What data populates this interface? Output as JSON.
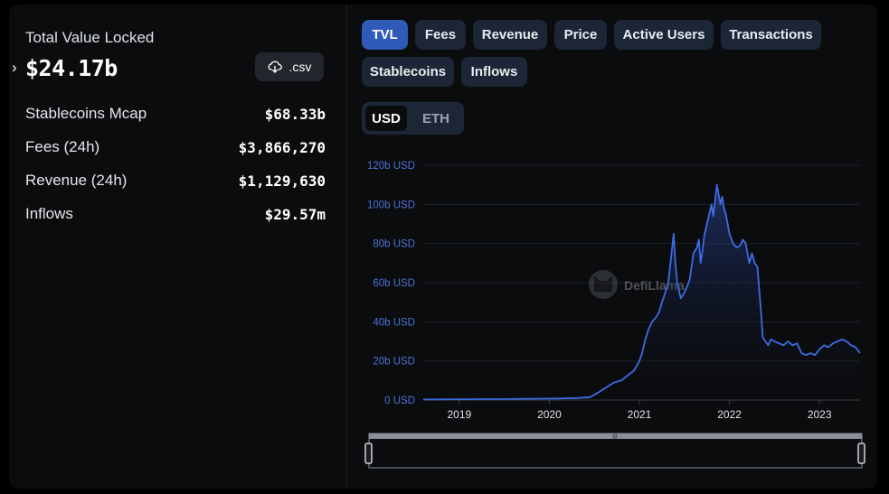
{
  "summary": {
    "tvl_label": "Total Value Locked",
    "tvl_value": "$24.17b",
    "csv_label": ".csv",
    "stats": [
      {
        "label": "Stablecoins Mcap",
        "value": "$68.33b"
      },
      {
        "label": "Fees (24h)",
        "value": "$3,866,270"
      },
      {
        "label": "Revenue (24h)",
        "value": "$1,129,630"
      },
      {
        "label": "Inflows",
        "value": "$29.57m"
      }
    ]
  },
  "tabs": [
    {
      "label": "TVL",
      "active": true
    },
    {
      "label": "Fees",
      "active": false
    },
    {
      "label": "Revenue",
      "active": false
    },
    {
      "label": "Price",
      "active": false
    },
    {
      "label": "Active Users",
      "active": false
    },
    {
      "label": "Transactions",
      "active": false
    },
    {
      "label": "Stablecoins",
      "active": false
    },
    {
      "label": "Inflows",
      "active": false
    }
  ],
  "unit_toggle": {
    "options": [
      "USD",
      "ETH"
    ],
    "selected": "USD"
  },
  "watermark": "DefiLlama",
  "colors": {
    "accent": "#2f5ab8",
    "line": "#3d6be3",
    "tab_bg": "#1c2637",
    "panel_bg": "#0b0c0e"
  },
  "chart_data": {
    "type": "area",
    "title": "",
    "xlabel": "",
    "ylabel": "",
    "ylim": [
      0,
      120
    ],
    "xlim": [
      2018.6,
      2023.45
    ],
    "y_ticks": [
      "0 USD",
      "20b USD",
      "40b USD",
      "60b USD",
      "80b USD",
      "100b USD",
      "120b USD"
    ],
    "x_ticks": [
      "2019",
      "2020",
      "2021",
      "2022",
      "2023"
    ],
    "grid": true,
    "series": [
      {
        "x": [
          2018.6,
          2019.0,
          2019.5,
          2019.9,
          2020.1,
          2020.3,
          2020.45,
          2020.55,
          2020.65,
          2020.72,
          2020.8,
          2020.88,
          2020.94,
          2021.0,
          2021.03,
          2021.06,
          2021.1,
          2021.14,
          2021.18,
          2021.22,
          2021.25,
          2021.28,
          2021.32,
          2021.35,
          2021.38,
          2021.4,
          2021.42,
          2021.44,
          2021.46,
          2021.5,
          2021.53,
          2021.56,
          2021.6,
          2021.64,
          2021.66,
          2021.68,
          2021.7,
          2021.72,
          2021.75,
          2021.78,
          2021.8,
          2021.82,
          2021.84,
          2021.86,
          2021.88,
          2021.9,
          2021.92,
          2021.94,
          2021.96,
          2022.0,
          2022.04,
          2022.08,
          2022.12,
          2022.15,
          2022.18,
          2022.22,
          2022.25,
          2022.28,
          2022.31,
          2022.35,
          2022.37,
          2022.4,
          2022.43,
          2022.46,
          2022.5,
          2022.55,
          2022.6,
          2022.65,
          2022.7,
          2022.75,
          2022.8,
          2022.85,
          2022.9,
          2022.95,
          2023.0,
          2023.05,
          2023.1,
          2023.15,
          2023.2,
          2023.25,
          2023.3,
          2023.35,
          2023.4,
          2023.45
        ],
        "y": [
          0.3,
          0.4,
          0.5,
          0.7,
          0.8,
          1.0,
          1.5,
          4,
          7,
          9,
          10,
          13,
          15,
          20,
          24,
          30,
          36,
          40,
          42,
          45,
          50,
          54,
          60,
          72,
          85,
          70,
          60,
          56,
          52,
          55,
          58,
          62,
          75,
          78,
          82,
          70,
          76,
          84,
          90,
          96,
          100,
          94,
          102,
          110,
          105,
          100,
          104,
          98,
          95,
          85,
          80,
          78,
          79,
          82,
          80,
          70,
          75,
          70,
          68,
          45,
          32,
          30,
          28,
          31,
          30,
          29,
          28,
          30,
          28,
          29,
          24,
          23,
          24,
          23,
          26,
          28,
          27,
          29,
          30,
          31,
          30,
          28,
          27,
          24
        ]
      }
    ]
  }
}
